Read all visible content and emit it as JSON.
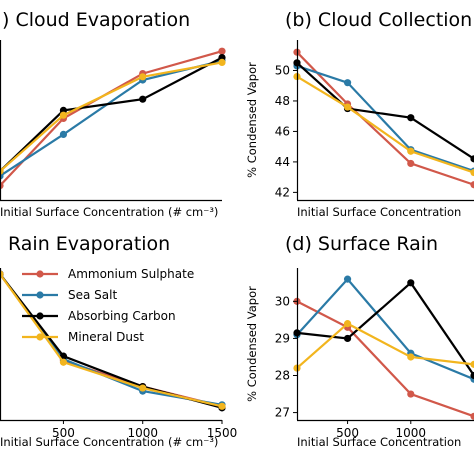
{
  "colors": {
    "ammonium": "#d1584a",
    "seasalt": "#2a7aa6",
    "carbon": "#000000",
    "dust": "#f2b51e"
  },
  "legend": {
    "entries": [
      "Ammonium Sulphate",
      "Sea Salt",
      "Absorbing Carbon",
      "Mineral Dust"
    ]
  },
  "chart_data": [
    {
      "type": "line",
      "title": ") Cloud Evaporation",
      "xlabel": "Initial Surface Concentration (# cm⁻³)",
      "ylabel": "",
      "xlim": [
        100,
        1500
      ],
      "ylim": [
        0,
        10
      ],
      "yticks": [],
      "xticks": [],
      "x": [
        100,
        500,
        1000,
        1500
      ],
      "series": [
        {
          "name": "Ammonium Sulphate",
          "key": "ammonium",
          "values": [
            0.9,
            5.1,
            7.9,
            9.3
          ]
        },
        {
          "name": "Sea Salt",
          "key": "seasalt",
          "values": [
            1.5,
            4.1,
            7.5,
            8.7
          ]
        },
        {
          "name": "Absorbing Carbon",
          "key": "carbon",
          "values": [
            1.8,
            5.6,
            6.3,
            8.9
          ]
        },
        {
          "name": "Mineral Dust",
          "key": "dust",
          "values": [
            1.8,
            5.3,
            7.7,
            8.6
          ]
        }
      ]
    },
    {
      "type": "line",
      "title": "(b) Cloud Collection",
      "xlabel": "Initial Surface Concentration",
      "ylabel": "% Condensed Vapor",
      "xlim": [
        100,
        1500
      ],
      "ylim": [
        41.5,
        52
      ],
      "yticks": [
        42,
        44,
        46,
        48,
        50
      ],
      "xticks": [],
      "x": [
        100,
        500,
        1000,
        1500
      ],
      "series": [
        {
          "name": "Ammonium Sulphate",
          "key": "ammonium",
          "values": [
            51.2,
            47.8,
            43.9,
            42.5
          ]
        },
        {
          "name": "Sea Salt",
          "key": "seasalt",
          "values": [
            50.3,
            49.2,
            44.8,
            43.4
          ]
        },
        {
          "name": "Absorbing Carbon",
          "key": "carbon",
          "values": [
            50.5,
            47.5,
            46.9,
            44.2
          ]
        },
        {
          "name": "Mineral Dust",
          "key": "dust",
          "values": [
            49.6,
            47.6,
            44.7,
            43.3
          ]
        }
      ]
    },
    {
      "type": "line",
      "title": "Rain Evaporation",
      "xlabel": "Initial Surface Concentration (# cm⁻³)",
      "ylabel": "",
      "xlim": [
        100,
        1500
      ],
      "ylim": [
        0,
        10
      ],
      "yticks": [],
      "xticks": [
        500,
        1000,
        1500
      ],
      "x": [
        100,
        500,
        1000,
        1500
      ],
      "series": [
        {
          "name": "Ammonium Sulphate",
          "key": "ammonium",
          "values": [
            9.6,
            3.9,
            2.2,
            0.9
          ]
        },
        {
          "name": "Sea Salt",
          "key": "seasalt",
          "values": [
            9.6,
            4.0,
            1.9,
            1.0
          ]
        },
        {
          "name": "Absorbing Carbon",
          "key": "carbon",
          "values": [
            9.6,
            4.2,
            2.2,
            0.8
          ]
        },
        {
          "name": "Mineral Dust",
          "key": "dust",
          "values": [
            9.6,
            3.8,
            2.1,
            0.9
          ]
        }
      ]
    },
    {
      "type": "line",
      "title": "(d) Surface Rain",
      "xlabel": "Initial Surface Concentration",
      "ylabel": "% Condensed Vapor",
      "xlim": [
        100,
        1500
      ],
      "ylim": [
        26.8,
        30.9
      ],
      "yticks": [
        27,
        28,
        29,
        30
      ],
      "xticks": [
        500,
        1000
      ],
      "x": [
        100,
        500,
        1000,
        1500
      ],
      "series": [
        {
          "name": "Ammonium Sulphate",
          "key": "ammonium",
          "values": [
            30.0,
            29.3,
            27.5,
            26.9
          ]
        },
        {
          "name": "Sea Salt",
          "key": "seasalt",
          "values": [
            29.1,
            30.6,
            28.6,
            27.9
          ]
        },
        {
          "name": "Absorbing Carbon",
          "key": "carbon",
          "values": [
            29.15,
            29.0,
            30.5,
            28.0
          ]
        },
        {
          "name": "Mineral Dust",
          "key": "dust",
          "values": [
            28.2,
            29.4,
            28.5,
            28.3
          ]
        }
      ]
    }
  ]
}
